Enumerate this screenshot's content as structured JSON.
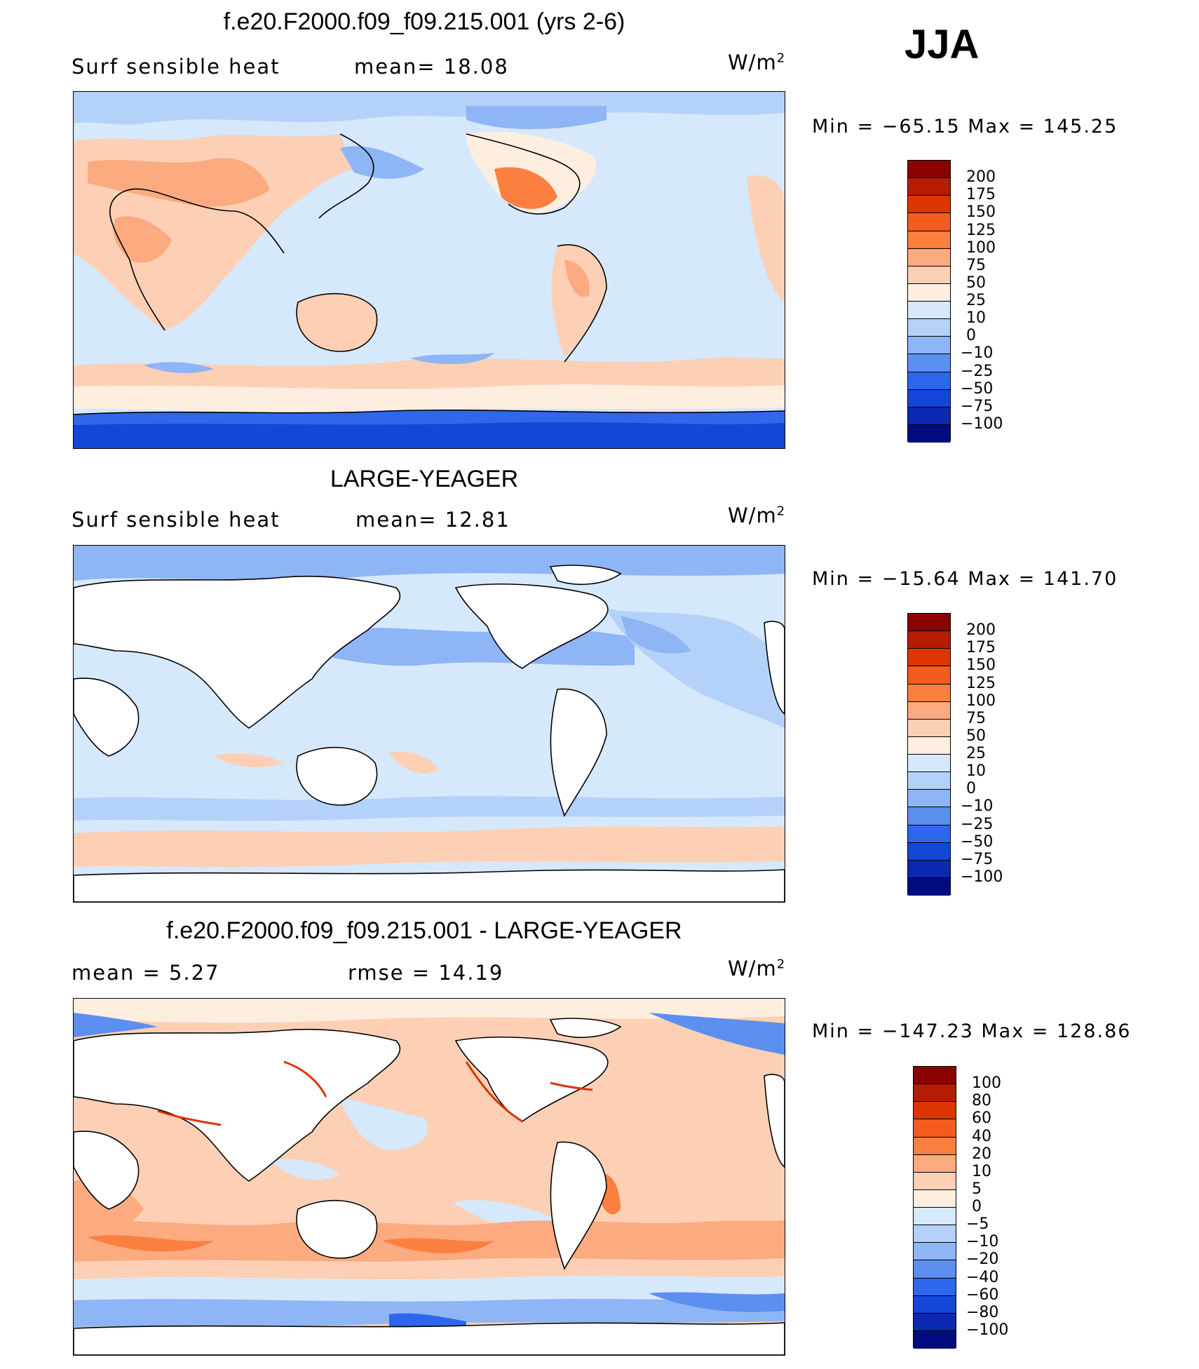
{
  "season": "JJA",
  "panels": [
    {
      "title": "f.e20.F2000.f09_f09.215.001 (yrs 2-6)",
      "left_label": "Surf  sensible  heat",
      "mid_label": "mean=   18.08",
      "units_base": "W/m",
      "units_exp": "2",
      "minmax": "Min  =  −65.15  Max  =  145.25",
      "levels": [
        "200",
        "175",
        "150",
        "125",
        "100",
        "75",
        "50",
        "25",
        "10",
        "0",
        "−10",
        "−25",
        "−50",
        "−75",
        "−100"
      ],
      "colors": [
        "#8b0000",
        "#b51c00",
        "#dc3500",
        "#f55b1e",
        "#fb8040",
        "#fcaa80",
        "#fdd0b5",
        "#fdeee0",
        "#d6e8fb",
        "#b4d1f9",
        "#8eb5f5",
        "#5b8ff0",
        "#2f66ee",
        "#1446d8",
        "#0a28b0",
        "#000c80"
      ],
      "land_fill": false
    },
    {
      "title": "LARGE-YEAGER",
      "left_label": "Surf  sensible  heat",
      "mid_label": "mean=   12.81",
      "units_base": "W/m",
      "units_exp": "2",
      "minmax": "Min  =  −15.64  Max  =  141.70",
      "levels": [
        "200",
        "175",
        "150",
        "125",
        "100",
        "75",
        "50",
        "25",
        "10",
        "0",
        "−10",
        "−25",
        "−50",
        "−75",
        "−100"
      ],
      "colors": [
        "#8b0000",
        "#b51c00",
        "#dc3500",
        "#f55b1e",
        "#fb8040",
        "#fcaa80",
        "#fdd0b5",
        "#fdeee0",
        "#d6e8fb",
        "#b4d1f9",
        "#8eb5f5",
        "#5b8ff0",
        "#2f66ee",
        "#1446d8",
        "#0a28b0",
        "#000c80"
      ],
      "land_fill": true
    },
    {
      "title": "f.e20.F2000.f09_f09.215.001 - LARGE-YEAGER",
      "left_label": "mean  =     5.27",
      "mid_label": "rmse  =     14.19",
      "units_base": "W/m",
      "units_exp": "2",
      "minmax": "Min  =  −147.23  Max  =  128.86",
      "levels": [
        "100",
        "80",
        "60",
        "40",
        "20",
        "10",
        "5",
        "0",
        "−5",
        "−10",
        "−20",
        "−40",
        "−60",
        "−80",
        "−100"
      ],
      "colors": [
        "#8b0000",
        "#b51c00",
        "#dc3500",
        "#f55b1e",
        "#fb8040",
        "#fcaa80",
        "#fdd0b5",
        "#fdeee0",
        "#d6e8fb",
        "#b4d1f9",
        "#8eb5f5",
        "#5b8ff0",
        "#2f66ee",
        "#1446d8",
        "#0a28b0",
        "#000c80"
      ],
      "land_fill": true
    }
  ]
}
